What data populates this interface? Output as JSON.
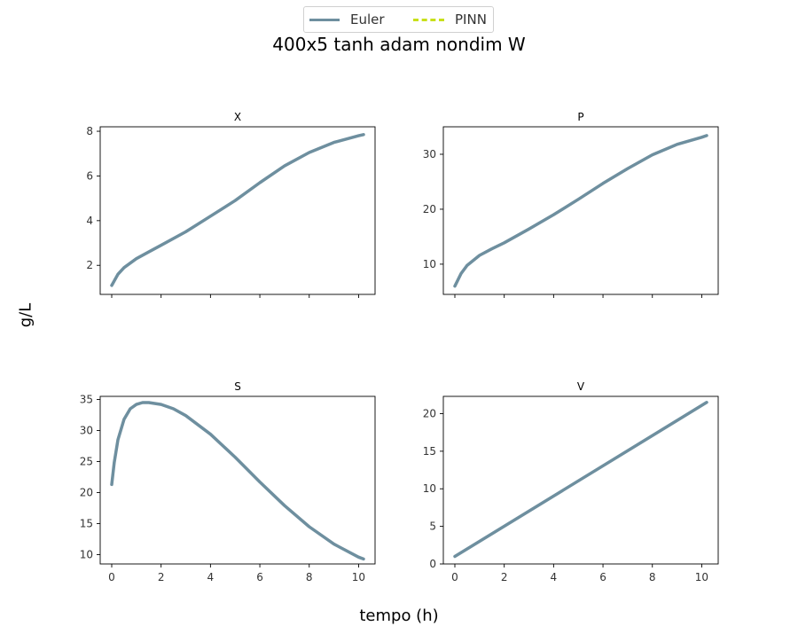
{
  "figure": {
    "title": "400x5 tanh adam nondim W",
    "xlabel": "tempo (h)",
    "ylabel": "g/L"
  },
  "legend": {
    "items": [
      {
        "label": "Euler",
        "color": "#6e8f9f",
        "style": "solid"
      },
      {
        "label": "PINN",
        "color": "#c8e01a",
        "style": "dashed"
      }
    ]
  },
  "chart_data": [
    {
      "type": "line",
      "title": "X",
      "xlim": [
        0,
        10.2
      ],
      "ylim": [
        0.7,
        8.2
      ],
      "xticks": [
        0,
        2,
        4,
        6,
        8,
        10
      ],
      "show_xticklabels": false,
      "yticks": [
        2,
        4,
        6,
        8
      ],
      "series": [
        {
          "name": "Euler",
          "x": [
            0,
            0.25,
            0.5,
            1,
            1.5,
            2,
            3,
            4,
            5,
            6,
            7,
            8,
            9,
            10,
            10.2
          ],
          "y": [
            1.1,
            1.6,
            1.9,
            2.3,
            2.6,
            2.9,
            3.5,
            4.2,
            4.9,
            5.7,
            6.45,
            7.05,
            7.5,
            7.8,
            7.85
          ]
        }
      ]
    },
    {
      "type": "line",
      "title": "P",
      "xlim": [
        0,
        10.2
      ],
      "ylim": [
        4.5,
        35
      ],
      "xticks": [
        0,
        2,
        4,
        6,
        8,
        10
      ],
      "show_xticklabels": false,
      "yticks": [
        10,
        20,
        30
      ],
      "series": [
        {
          "name": "Euler",
          "x": [
            0,
            0.25,
            0.5,
            1,
            1.5,
            2,
            3,
            4,
            5,
            6,
            7,
            8,
            9,
            10,
            10.2
          ],
          "y": [
            6,
            8.3,
            9.8,
            11.6,
            12.8,
            13.9,
            16.4,
            19,
            21.8,
            24.7,
            27.4,
            29.9,
            31.8,
            33.1,
            33.4
          ]
        }
      ]
    },
    {
      "type": "line",
      "title": "S",
      "xlim": [
        0,
        10.2
      ],
      "ylim": [
        8.5,
        35.5
      ],
      "xticks": [
        0,
        2,
        4,
        6,
        8,
        10
      ],
      "show_xticklabels": true,
      "yticks": [
        10,
        15,
        20,
        25,
        30,
        35
      ],
      "series": [
        {
          "name": "Euler",
          "x": [
            0,
            0.1,
            0.25,
            0.5,
            0.75,
            1,
            1.25,
            1.5,
            2,
            2.5,
            3,
            4,
            5,
            6,
            7,
            8,
            9,
            10,
            10.2
          ],
          "y": [
            21.3,
            24.8,
            28.5,
            31.8,
            33.5,
            34.2,
            34.5,
            34.5,
            34.2,
            33.5,
            32.4,
            29.4,
            25.7,
            21.7,
            17.9,
            14.5,
            11.7,
            9.6,
            9.3
          ]
        }
      ]
    },
    {
      "type": "line",
      "title": "V",
      "xlim": [
        0,
        10.2
      ],
      "ylim": [
        0,
        22.3
      ],
      "xticks": [
        0,
        2,
        4,
        6,
        8,
        10
      ],
      "show_xticklabels": true,
      "yticks": [
        0,
        5,
        10,
        15,
        20
      ],
      "series": [
        {
          "name": "Euler",
          "x": [
            0,
            10.2
          ],
          "y": [
            1,
            21.5
          ]
        }
      ]
    }
  ]
}
